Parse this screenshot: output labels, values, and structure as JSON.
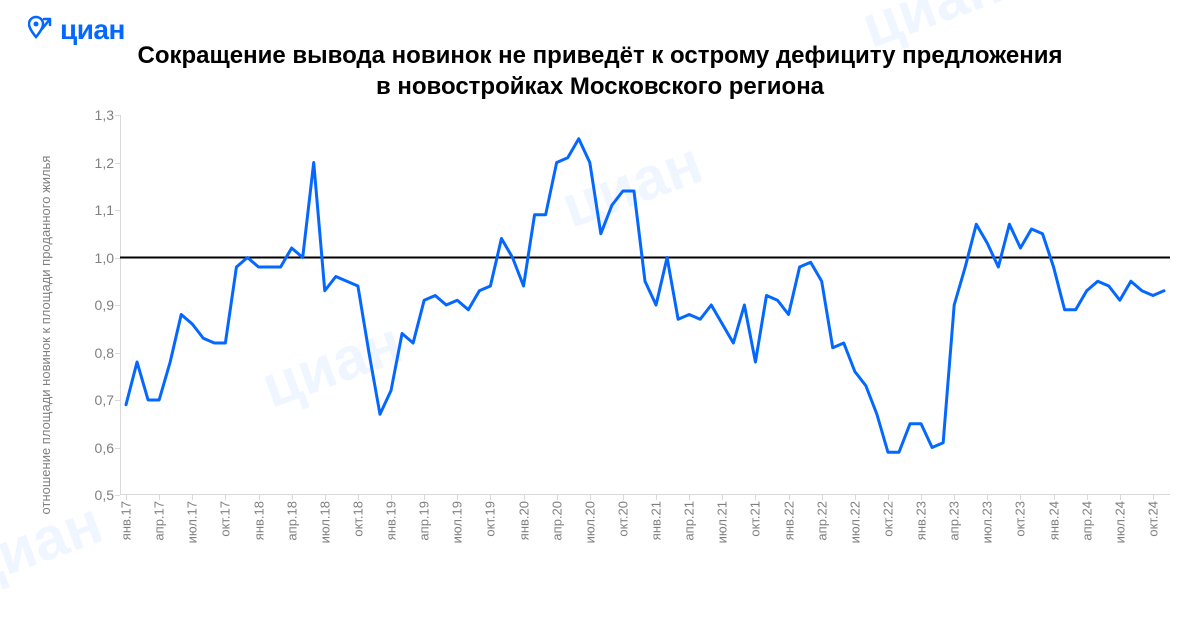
{
  "logo": {
    "text": "циан",
    "color": "#0468ff"
  },
  "title_line1": "Сокращение вывода новинок не приведёт к острому дефициту предложения",
  "title_line2": "в новостройках Московского региона",
  "watermark_text": "циан",
  "chart": {
    "type": "line",
    "line_color": "#0468ff",
    "line_width": 3,
    "reference_line": {
      "y": 1.0,
      "color": "#000000",
      "width": 2
    },
    "background_color": "#ffffff",
    "axis_color": "#d9d9d9",
    "tick_label_color": "#7f7f7f",
    "tick_fontsize": 14,
    "x_tick_fontsize": 13,
    "ylabel": "отношение площади новинок к площади проданного жилья",
    "ylabel_fontsize": 13,
    "ylim": [
      0.5,
      1.3
    ],
    "yticks": [
      0.5,
      0.6,
      0.7,
      0.8,
      0.9,
      1.0,
      1.1,
      1.2,
      1.3
    ],
    "ytick_labels": [
      "0,5",
      "0,6",
      "0,7",
      "0,8",
      "0,9",
      "1,0",
      "1,1",
      "1,2",
      "1,3"
    ],
    "x_labels": [
      "янв.17",
      "апр.17",
      "июл.17",
      "окт.17",
      "янв.18",
      "апр.18",
      "июл.18",
      "окт.18",
      "янв.19",
      "апр.19",
      "июл.19",
      "окт.19",
      "янв.20",
      "апр.20",
      "июл.20",
      "окт.20",
      "янв.21",
      "апр.21",
      "июл.21",
      "окт.21",
      "янв.22",
      "апр.22",
      "июл.22",
      "окт.22",
      "янв.23",
      "апр.23",
      "июл.23",
      "окт.23",
      "янв.24",
      "апр.24",
      "июл.24",
      "окт.24"
    ],
    "x_label_step": 3,
    "values": [
      0.69,
      0.78,
      0.7,
      0.7,
      0.78,
      0.88,
      0.86,
      0.83,
      0.82,
      0.82,
      0.98,
      1.0,
      0.98,
      0.98,
      0.98,
      1.02,
      1.0,
      1.2,
      0.93,
      0.96,
      0.95,
      0.94,
      0.8,
      0.67,
      0.72,
      0.84,
      0.82,
      0.91,
      0.92,
      0.9,
      0.91,
      0.89,
      0.93,
      0.94,
      1.04,
      1.0,
      0.94,
      1.09,
      1.09,
      1.2,
      1.21,
      1.25,
      1.2,
      1.05,
      1.11,
      1.14,
      1.14,
      0.95,
      0.9,
      1.0,
      0.87,
      0.88,
      0.87,
      0.9,
      0.86,
      0.82,
      0.9,
      0.78,
      0.92,
      0.91,
      0.88,
      0.98,
      0.99,
      0.95,
      0.81,
      0.82,
      0.76,
      0.73,
      0.67,
      0.59,
      0.59,
      0.65,
      0.65,
      0.6,
      0.61,
      0.9,
      0.98,
      1.07,
      1.03,
      0.98,
      1.07,
      1.02,
      1.06,
      1.05,
      0.98,
      0.89,
      0.89,
      0.93,
      0.95,
      0.94,
      0.91,
      0.95,
      0.93,
      0.92,
      0.93
    ]
  }
}
